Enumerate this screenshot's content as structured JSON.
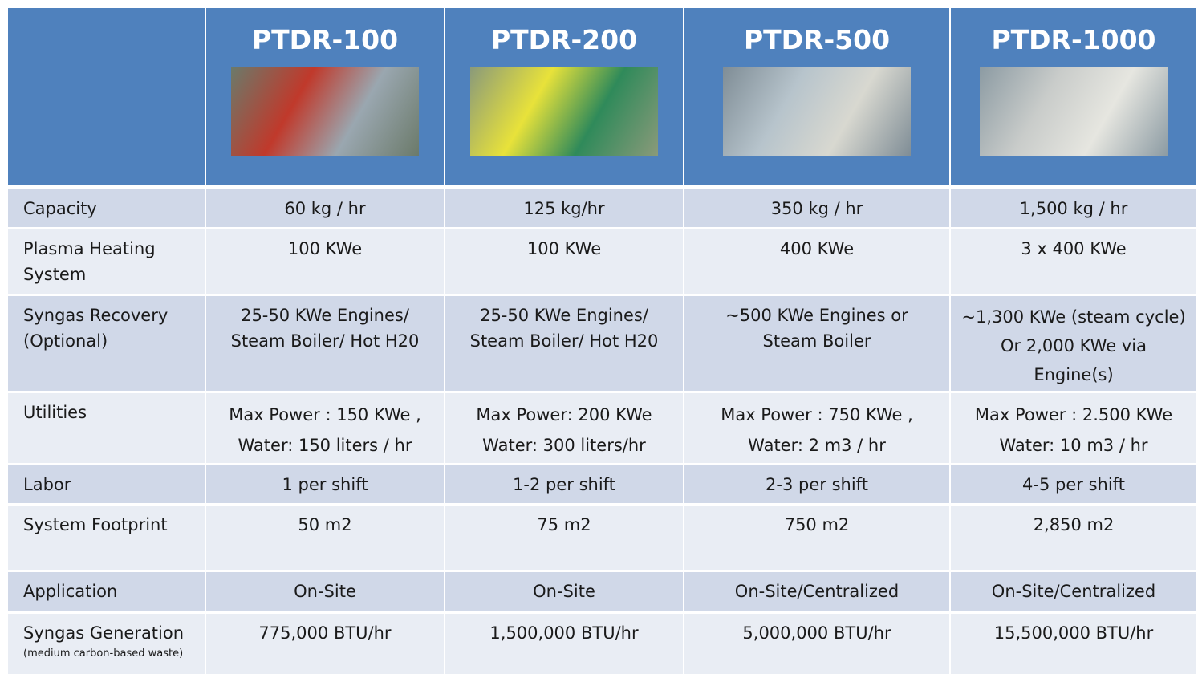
{
  "table": {
    "columns": [
      "PTDR-100",
      "PTDR-200",
      "PTDR-500",
      "PTDR-1000"
    ],
    "rows": [
      {
        "label": [
          "Capacity"
        ],
        "cells": [
          [
            "60 kg / hr"
          ],
          [
            "125 kg/hr"
          ],
          [
            "350 kg / hr"
          ],
          [
            "1,500 kg / hr"
          ]
        ]
      },
      {
        "label": [
          "Plasma Heating",
          "System"
        ],
        "cells": [
          [
            "100 KWe"
          ],
          [
            "100 KWe"
          ],
          [
            "400 KWe"
          ],
          [
            "3 x 400 KWe"
          ]
        ]
      },
      {
        "label": [
          "Syngas Recovery",
          "(Optional)"
        ],
        "cells": [
          [
            "25-50 KWe Engines/",
            "Steam Boiler/ Hot H20"
          ],
          [
            "25-50 KWe Engines/",
            "Steam Boiler/ Hot H20"
          ],
          [
            "~500 KWe Engines or",
            "Steam Boiler"
          ],
          [
            "~1,300 KWe (steam cycle)",
            "Or 2,000 KWe via",
            "Engine(s)"
          ]
        ]
      },
      {
        "label": [
          "Utilities"
        ],
        "cells": [
          [
            "Max Power : 150 KWe ,",
            "Water: 150 liters / hr"
          ],
          [
            "Max Power: 200 KWe",
            "Water: 300 liters/hr"
          ],
          [
            "Max Power : 750 KWe ,",
            "Water: 2 m3 / hr"
          ],
          [
            "Max Power : 2.500 KWe",
            "Water: 10 m3 / hr"
          ]
        ]
      },
      {
        "label": [
          "Labor"
        ],
        "cells": [
          [
            "1 per shift"
          ],
          [
            "1-2 per shift"
          ],
          [
            "2-3 per shift"
          ],
          [
            "4-5 per shift"
          ]
        ]
      },
      {
        "label": [
          "System Footprint"
        ],
        "cells": [
          [
            "50 m2"
          ],
          [
            "75 m2"
          ],
          [
            "750 m2"
          ],
          [
            "2,850 m2"
          ]
        ]
      },
      {
        "label": [
          "Application"
        ],
        "cells": [
          [
            "On-Site"
          ],
          [
            "On-Site"
          ],
          [
            "On-Site/Centralized"
          ],
          [
            "On-Site/Centralized"
          ]
        ]
      },
      {
        "label": [
          "Syngas Generation"
        ],
        "note": "(medium carbon-based waste)",
        "cells": [
          [
            "775,000 BTU/hr"
          ],
          [
            "1,500,000 BTU/hr"
          ],
          [
            "5,000,000 BTU/hr"
          ],
          [
            "15,500,000 BTU/hr"
          ]
        ]
      }
    ]
  }
}
